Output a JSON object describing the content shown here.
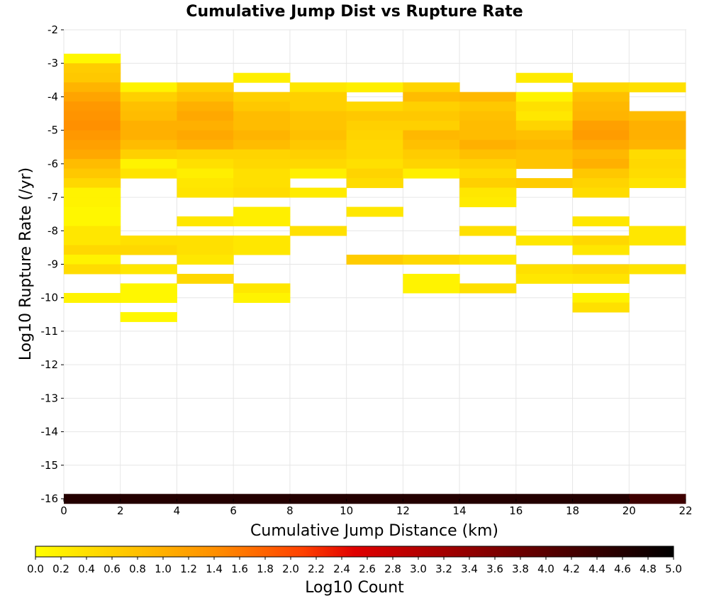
{
  "chart_data": {
    "type": "heatmap",
    "title": "Cumulative Jump Dist vs Rupture Rate",
    "xlabel": "Cumulative Jump Distance (km)",
    "ylabel": "Log10 Rupture Rate (/yr)",
    "xlim": [
      0,
      22
    ],
    "ylim": [
      -16,
      -2
    ],
    "x_ticks": [
      "0",
      "2",
      "4",
      "6",
      "8",
      "10",
      "12",
      "14",
      "16",
      "18",
      "20",
      "22"
    ],
    "y_ticks": [
      "-2",
      "-3",
      "-4",
      "-5",
      "-6",
      "-7",
      "-8",
      "-9",
      "-10",
      "-11",
      "-12",
      "-13",
      "-14",
      "-15",
      "-16"
    ],
    "x_bin_width": 2,
    "y_bin_height": 0.2857,
    "grid": true,
    "colorbar": {
      "label": "Log10 Count",
      "range": [
        0,
        5
      ],
      "ticks": [
        "0.0",
        "0.2",
        "0.4",
        "0.6",
        "0.8",
        "1.0",
        "1.2",
        "1.4",
        "1.6",
        "1.8",
        "2.0",
        "2.2",
        "2.4",
        "2.6",
        "2.8",
        "3.0",
        "3.2",
        "3.4",
        "3.6",
        "3.8",
        "4.0",
        "4.2",
        "4.4",
        "4.6",
        "4.8",
        "5.0"
      ],
      "colormap": [
        "#ffff00",
        "#ffa500",
        "#ff6000",
        "#e00000",
        "#5a0000",
        "#000000"
      ]
    },
    "columns": [
      {
        "x": 0,
        "cells": [
          [
            -2.857,
            0.1
          ],
          [
            -3.143,
            0.65
          ],
          [
            -3.429,
            0.7
          ],
          [
            -3.714,
            0.95
          ],
          [
            -4.0,
            1.15
          ],
          [
            -4.286,
            1.3
          ],
          [
            -4.571,
            1.35
          ],
          [
            -4.857,
            1.4
          ],
          [
            -5.143,
            1.3
          ],
          [
            -5.429,
            1.2
          ],
          [
            -5.714,
            1.1
          ],
          [
            -6.0,
            0.85
          ],
          [
            -6.286,
            0.7
          ],
          [
            -6.571,
            0.5
          ],
          [
            -6.857,
            0.15
          ],
          [
            -7.143,
            0.15
          ],
          [
            -7.429,
            0.1
          ],
          [
            -7.714,
            0.1
          ],
          [
            -8.0,
            0.3
          ],
          [
            -8.286,
            0.3
          ],
          [
            -8.571,
            0.5
          ],
          [
            -8.857,
            0.15
          ],
          [
            -9.143,
            0.45
          ],
          [
            -10.0,
            0.15
          ],
          [
            -16.0,
            4.6
          ]
        ]
      },
      {
        "x": 2,
        "cells": [
          [
            -3.714,
            0.15
          ],
          [
            -4.0,
            0.6
          ],
          [
            -4.286,
            0.8
          ],
          [
            -4.571,
            0.85
          ],
          [
            -4.857,
            1.0
          ],
          [
            -5.143,
            1.0
          ],
          [
            -5.429,
            0.85
          ],
          [
            -5.714,
            0.6
          ],
          [
            -6.0,
            0.15
          ],
          [
            -6.286,
            0.35
          ],
          [
            -8.286,
            0.4
          ],
          [
            -8.571,
            0.5
          ],
          [
            -9.143,
            0.3
          ],
          [
            -9.714,
            0.1
          ],
          [
            -10.0,
            0.1
          ],
          [
            -10.571,
            0.1
          ],
          [
            -16.0,
            4.6
          ]
        ]
      },
      {
        "x": 4,
        "cells": [
          [
            -3.714,
            0.6
          ],
          [
            -4.0,
            0.8
          ],
          [
            -4.286,
            1.0
          ],
          [
            -4.571,
            1.1
          ],
          [
            -4.857,
            1.0
          ],
          [
            -5.143,
            1.1
          ],
          [
            -5.429,
            1.0
          ],
          [
            -5.714,
            0.55
          ],
          [
            -6.0,
            0.4
          ],
          [
            -6.286,
            0.2
          ],
          [
            -6.571,
            0.3
          ],
          [
            -6.857,
            0.35
          ],
          [
            -7.714,
            0.3
          ],
          [
            -8.286,
            0.4
          ],
          [
            -8.571,
            0.4
          ],
          [
            -8.857,
            0.3
          ],
          [
            -9.429,
            0.5
          ],
          [
            -16.0,
            4.6
          ]
        ]
      },
      {
        "x": 6,
        "cells": [
          [
            -3.429,
            0.2
          ],
          [
            -4.0,
            0.6
          ],
          [
            -4.286,
            0.7
          ],
          [
            -4.571,
            0.85
          ],
          [
            -4.857,
            0.85
          ],
          [
            -5.143,
            0.95
          ],
          [
            -5.429,
            0.85
          ],
          [
            -5.714,
            0.55
          ],
          [
            -6.0,
            0.5
          ],
          [
            -6.286,
            0.4
          ],
          [
            -6.571,
            0.4
          ],
          [
            -6.857,
            0.45
          ],
          [
            -7.429,
            0.2
          ],
          [
            -7.714,
            0.2
          ],
          [
            -8.286,
            0.3
          ],
          [
            -8.571,
            0.3
          ],
          [
            -9.714,
            0.3
          ],
          [
            -10.0,
            0.15
          ],
          [
            -16.0,
            4.6
          ]
        ]
      },
      {
        "x": 8,
        "cells": [
          [
            -3.714,
            0.3
          ],
          [
            -4.0,
            0.6
          ],
          [
            -4.286,
            0.6
          ],
          [
            -4.571,
            0.75
          ],
          [
            -4.857,
            0.75
          ],
          [
            -5.143,
            0.8
          ],
          [
            -5.429,
            0.7
          ],
          [
            -5.714,
            0.6
          ],
          [
            -6.0,
            0.5
          ],
          [
            -6.286,
            0.2
          ],
          [
            -6.857,
            0.25
          ],
          [
            -8.0,
            0.4
          ],
          [
            -16.0,
            4.6
          ]
        ]
      },
      {
        "x": 10,
        "cells": [
          [
            -3.714,
            0.2
          ],
          [
            -4.286,
            0.5
          ],
          [
            -4.571,
            0.7
          ],
          [
            -4.857,
            0.6
          ],
          [
            -5.143,
            0.55
          ],
          [
            -5.429,
            0.5
          ],
          [
            -5.714,
            0.5
          ],
          [
            -6.0,
            0.4
          ],
          [
            -6.286,
            0.55
          ],
          [
            -6.571,
            0.45
          ],
          [
            -7.429,
            0.3
          ],
          [
            -8.857,
            0.65
          ],
          [
            -16.0,
            4.6
          ]
        ]
      },
      {
        "x": 12,
        "cells": [
          [
            -3.714,
            0.55
          ],
          [
            -4.0,
            0.85
          ],
          [
            -4.286,
            0.6
          ],
          [
            -4.571,
            0.7
          ],
          [
            -4.857,
            0.6
          ],
          [
            -5.143,
            0.9
          ],
          [
            -5.429,
            0.8
          ],
          [
            -5.714,
            0.65
          ],
          [
            -6.0,
            0.55
          ],
          [
            -6.286,
            0.2
          ],
          [
            -8.857,
            0.5
          ],
          [
            -9.429,
            0.15
          ],
          [
            -9.714,
            0.15
          ],
          [
            -16.0,
            4.6
          ]
        ]
      },
      {
        "x": 14,
        "cells": [
          [
            -4.0,
            0.9
          ],
          [
            -4.286,
            0.7
          ],
          [
            -4.571,
            0.8
          ],
          [
            -4.857,
            0.85
          ],
          [
            -5.143,
            0.85
          ],
          [
            -5.429,
            1.0
          ],
          [
            -5.714,
            0.8
          ],
          [
            -6.0,
            0.6
          ],
          [
            -6.286,
            0.45
          ],
          [
            -6.571,
            0.6
          ],
          [
            -6.857,
            0.3
          ],
          [
            -7.143,
            0.25
          ],
          [
            -8.0,
            0.4
          ],
          [
            -8.857,
            0.3
          ],
          [
            -9.714,
            0.4
          ],
          [
            -16.0,
            4.6
          ]
        ]
      },
      {
        "x": 16,
        "cells": [
          [
            -3.429,
            0.25
          ],
          [
            -4.0,
            0.15
          ],
          [
            -4.286,
            0.4
          ],
          [
            -4.571,
            0.3
          ],
          [
            -4.857,
            0.55
          ],
          [
            -5.143,
            0.8
          ],
          [
            -5.429,
            0.9
          ],
          [
            -5.714,
            0.75
          ],
          [
            -6.0,
            0.75
          ],
          [
            -6.571,
            0.65
          ],
          [
            -8.286,
            0.3
          ],
          [
            -9.143,
            0.4
          ],
          [
            -9.429,
            0.3
          ],
          [
            -16.0,
            4.6
          ]
        ]
      },
      {
        "x": 18,
        "cells": [
          [
            -3.714,
            0.5
          ],
          [
            -4.0,
            0.8
          ],
          [
            -4.286,
            0.9
          ],
          [
            -4.571,
            0.95
          ],
          [
            -4.857,
            1.2
          ],
          [
            -5.143,
            1.25
          ],
          [
            -5.429,
            1.1
          ],
          [
            -5.714,
            0.9
          ],
          [
            -6.0,
            1.0
          ],
          [
            -6.286,
            0.7
          ],
          [
            -6.571,
            0.55
          ],
          [
            -6.857,
            0.45
          ],
          [
            -7.714,
            0.3
          ],
          [
            -8.286,
            0.5
          ],
          [
            -8.571,
            0.3
          ],
          [
            -9.143,
            0.5
          ],
          [
            -9.429,
            0.35
          ],
          [
            -10.0,
            0.15
          ],
          [
            -10.286,
            0.4
          ],
          [
            -16.0,
            4.6
          ]
        ]
      },
      {
        "x": 20,
        "cells": [
          [
            -3.714,
            0.4
          ],
          [
            -4.571,
            0.85
          ],
          [
            -4.857,
            1.0
          ],
          [
            -5.143,
            1.0
          ],
          [
            -5.429,
            0.95
          ],
          [
            -5.714,
            0.45
          ],
          [
            -6.0,
            0.5
          ],
          [
            -6.286,
            0.45
          ],
          [
            -6.571,
            0.35
          ],
          [
            -8.0,
            0.3
          ],
          [
            -8.286,
            0.3
          ],
          [
            -9.143,
            0.35
          ],
          [
            -16.0,
            4.3
          ]
        ]
      }
    ]
  }
}
